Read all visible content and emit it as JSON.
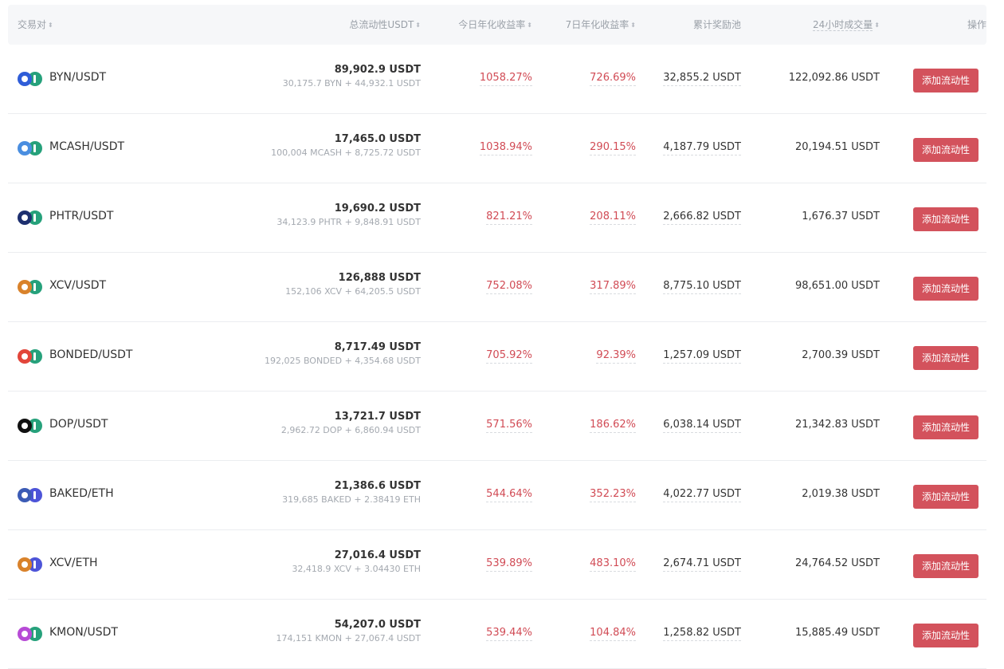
{
  "header": {
    "pair": "交易对",
    "liquidity": "总流动性USDT",
    "today_apy": "今日年化收益率",
    "week_apy": "7日年化收益率",
    "reward_pool": "累计奖励池",
    "volume_24h": "24小时成交量",
    "action": "操作",
    "sort_icon": "⬍"
  },
  "rows": [
    {
      "pair": "BYN/USDT",
      "liquidity": "89,902.9 USDT",
      "breakdown": "30,175.7 BYN + 44,932.1 USDT",
      "today": "1058.27%",
      "week": "726.69%",
      "pool": "32,855.2 USDT",
      "volume": "122,092.86 USDT",
      "button": "添加流动性",
      "icon_a": "byn-token-icon",
      "color_a": "#2f5dd8",
      "icon_b": "usdt-token-icon",
      "color_b": "#26a17b"
    },
    {
      "pair": "MCASH/USDT",
      "liquidity": "17,465.0 USDT",
      "breakdown": "100,004 MCASH + 8,725.72 USDT",
      "today": "1038.94%",
      "week": "290.15%",
      "pool": "4,187.79 USDT",
      "volume": "20,194.51 USDT",
      "button": "添加流动性",
      "icon_a": "mcash-token-icon",
      "color_a": "#4a8ee0",
      "icon_b": "usdt-token-icon",
      "color_b": "#26a17b"
    },
    {
      "pair": "PHTR/USDT",
      "liquidity": "19,690.2 USDT",
      "breakdown": "34,123.9 PHTR + 9,848.91 USDT",
      "today": "821.21%",
      "week": "208.11%",
      "pool": "2,666.82 USDT",
      "volume": "1,676.37 USDT",
      "button": "添加流动性",
      "icon_a": "phtr-token-icon",
      "color_a": "#1d2f6f",
      "icon_b": "usdt-token-icon",
      "color_b": "#26a17b"
    },
    {
      "pair": "XCV/USDT",
      "liquidity": "126,888 USDT",
      "breakdown": "152,106 XCV + 64,205.5 USDT",
      "today": "752.08%",
      "week": "317.89%",
      "pool": "8,775.10 USDT",
      "volume": "98,651.00 USDT",
      "button": "添加流动性",
      "icon_a": "xcv-token-icon",
      "color_a": "#d9822b",
      "icon_b": "usdt-token-icon",
      "color_b": "#26a17b"
    },
    {
      "pair": "BONDED/USDT",
      "liquidity": "8,717.49 USDT",
      "breakdown": "192,025 BONDED + 4,354.68 USDT",
      "today": "705.92%",
      "week": "92.39%",
      "pool": "1,257.09 USDT",
      "volume": "2,700.39 USDT",
      "button": "添加流动性",
      "icon_a": "bonded-token-icon",
      "color_a": "#e2453a",
      "icon_b": "usdt-token-icon",
      "color_b": "#26a17b"
    },
    {
      "pair": "DOP/USDT",
      "liquidity": "13,721.7 USDT",
      "breakdown": "2,962.72 DOP + 6,860.94 USDT",
      "today": "571.56%",
      "week": "186.62%",
      "pool": "6,038.14 USDT",
      "volume": "21,342.83 USDT",
      "button": "添加流动性",
      "icon_a": "dop-token-icon",
      "color_a": "#111111",
      "icon_b": "usdt-token-icon",
      "color_b": "#26a17b"
    },
    {
      "pair": "BAKED/ETH",
      "liquidity": "21,386.6 USDT",
      "breakdown": "319,685 BAKED + 2.38419 ETH",
      "today": "544.64%",
      "week": "352.23%",
      "pool": "4,022.77 USDT",
      "volume": "2,019.38 USDT",
      "button": "添加流动性",
      "icon_a": "baked-token-icon",
      "color_a": "#3b5bb5",
      "icon_b": "eth-token-icon",
      "color_b": "#4d54d8"
    },
    {
      "pair": "XCV/ETH",
      "liquidity": "27,016.4 USDT",
      "breakdown": "32,418.9 XCV + 3.04430 ETH",
      "today": "539.89%",
      "week": "483.10%",
      "pool": "2,674.71 USDT",
      "volume": "24,764.52 USDT",
      "button": "添加流动性",
      "icon_a": "xcv-token-icon",
      "color_a": "#d9822b",
      "icon_b": "eth-token-icon",
      "color_b": "#4d54d8"
    },
    {
      "pair": "KMON/USDT",
      "liquidity": "54,207.0 USDT",
      "breakdown": "174,151 KMON + 27,067.4 USDT",
      "today": "539.44%",
      "week": "104.84%",
      "pool": "1,258.82 USDT",
      "volume": "15,885.49 USDT",
      "button": "添加流动性",
      "icon_a": "kmon-token-icon",
      "color_a": "#b74bd6",
      "icon_b": "usdt-token-icon",
      "color_b": "#26a17b"
    }
  ]
}
